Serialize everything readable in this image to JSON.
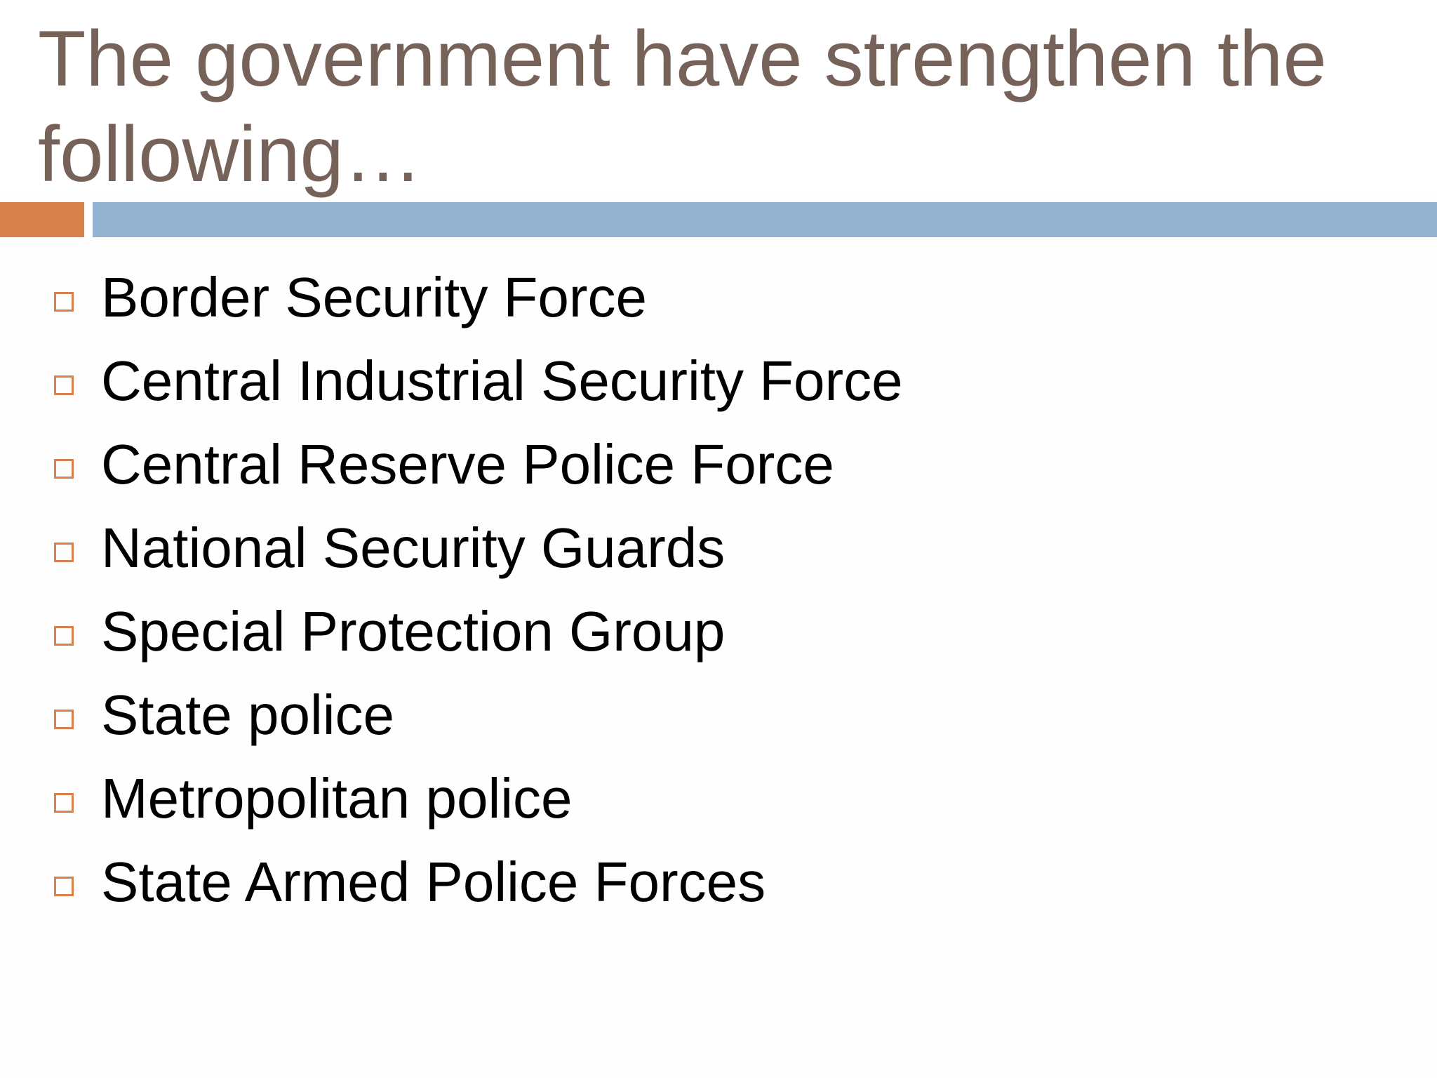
{
  "slide": {
    "title": "The government have strengthen the following…",
    "items": [
      {
        "label": "Border Security Force"
      },
      {
        "label": "Central Industrial Security Force"
      },
      {
        "label": "Central Reserve Police Force"
      },
      {
        "label": "National Security Guards"
      },
      {
        "label": "Special Protection Group"
      },
      {
        "label": "State police"
      },
      {
        "label": "Metropolitan police"
      },
      {
        "label": "State Armed Police Forces"
      }
    ],
    "bullet_icon": "hollow-square-icon"
  },
  "colors": {
    "title": "#77625a",
    "accent": "#d8814a",
    "rule": "#94b3d1",
    "body_text": "#000000"
  }
}
